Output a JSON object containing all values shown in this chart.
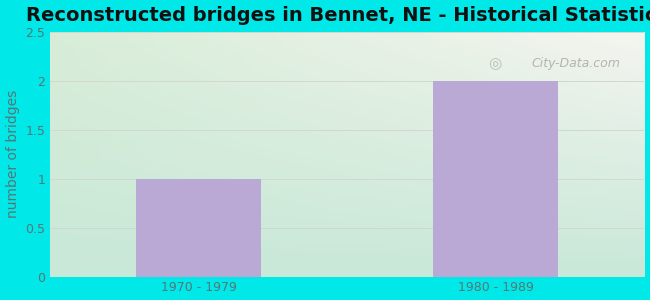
{
  "title": "Reconstructed bridges in Bennet, NE - Historical Statistics",
  "categories": [
    "1970 - 1979",
    "1980 - 1989"
  ],
  "values": [
    1,
    2
  ],
  "bar_color": "#b9a9d4",
  "ylabel": "number of bridges",
  "ylim": [
    0,
    2.5
  ],
  "yticks": [
    0,
    0.5,
    1,
    1.5,
    2,
    2.5
  ],
  "bg_outer": "#00e8e8",
  "bg_plot_topleft": "#d8edd8",
  "bg_plot_topright": "#f5f5f0",
  "bg_plot_bottomleft": "#c8e8d8",
  "bg_plot_bottomright": "#eaf5ea",
  "grid_color": "#d0d8d0",
  "title_fontsize": 14,
  "label_fontsize": 10,
  "tick_fontsize": 9,
  "tick_color": "#557777",
  "watermark": "City-Data.com"
}
